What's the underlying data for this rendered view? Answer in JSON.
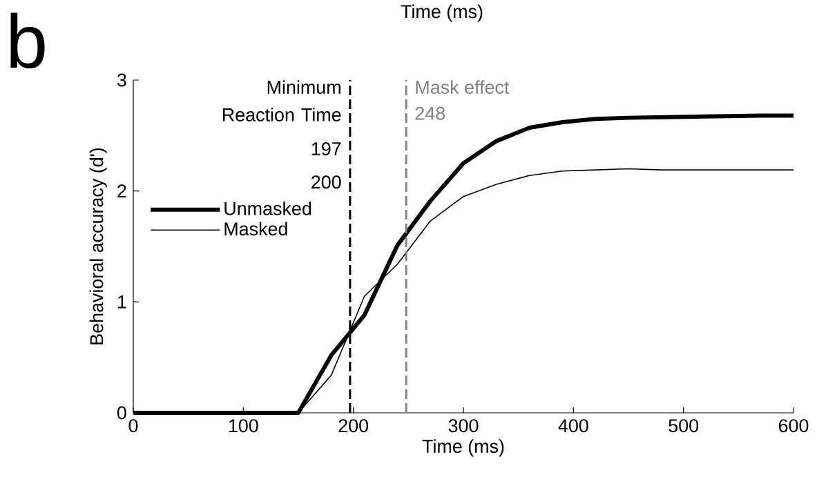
{
  "chart_data": {
    "type": "line",
    "xlabel": "Time (ms)",
    "ylabel": "Behavioral accuracy (d')",
    "x": [
      0,
      30,
      60,
      90,
      120,
      150,
      180,
      210,
      240,
      270,
      300,
      330,
      360,
      390,
      420,
      450,
      480,
      510,
      540,
      570,
      600
    ],
    "series": [
      {
        "name": "Unmasked",
        "color": "#000000",
        "values": [
          0,
          0,
          0,
          0,
          0,
          0,
          0.52,
          0.88,
          1.51,
          1.91,
          2.25,
          2.45,
          2.57,
          2.62,
          2.65,
          2.66,
          2.665,
          2.67,
          2.675,
          2.68,
          2.68
        ]
      },
      {
        "name": "Masked",
        "color": "#000000",
        "values": [
          0,
          0,
          0,
          0,
          0,
          0,
          0.34,
          1.05,
          1.34,
          1.73,
          1.95,
          2.06,
          2.14,
          2.18,
          2.19,
          2.2,
          2.19,
          2.19,
          2.19,
          2.19,
          2.19
        ]
      }
    ],
    "xlim": [
      0,
      600
    ],
    "ylim": [
      0,
      3
    ],
    "xticks": [
      0,
      100,
      200,
      300,
      400,
      500,
      600
    ],
    "yticks": [
      0,
      1,
      2,
      3
    ],
    "ref_lines": [
      {
        "axis": "x",
        "value": 197,
        "label": "Minimum Reaction Time",
        "color": "#000000",
        "line_style": "dashed"
      },
      {
        "axis": "x",
        "value": 248,
        "label": "Mask effect",
        "color": "#808080",
        "line_style": "dashed"
      }
    ],
    "annotations": [
      "b",
      "Time (ms)",
      "197",
      "200",
      "248"
    ],
    "legend": "left",
    "grid": false,
    "marker": "none",
    "line_style": "solid"
  }
}
